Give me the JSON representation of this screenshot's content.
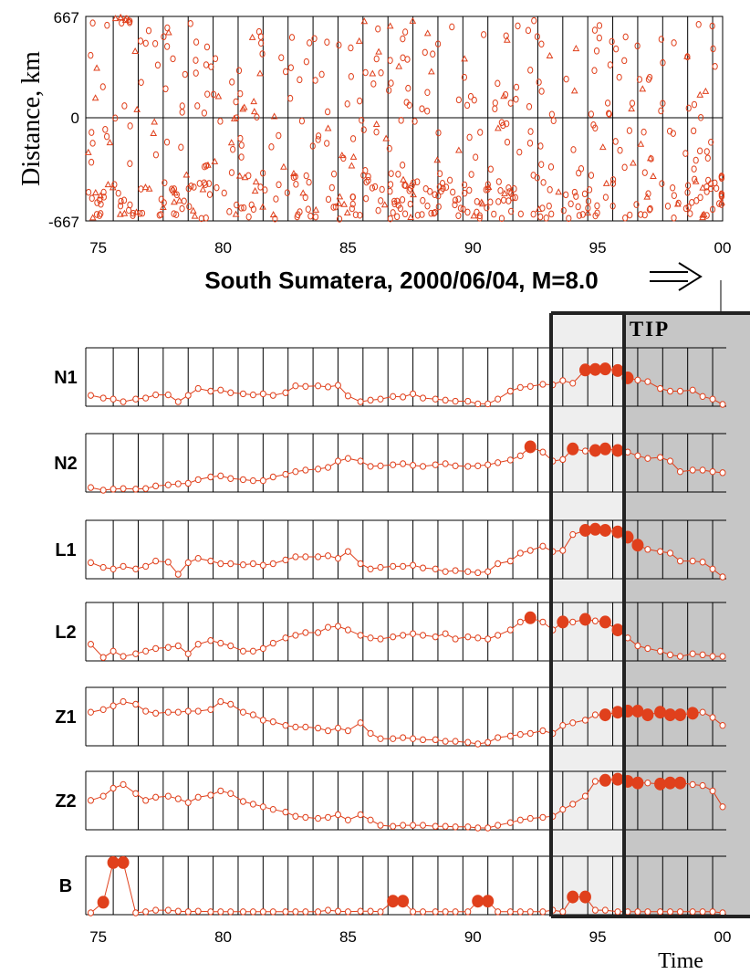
{
  "chart_data": [
    {
      "type": "scatter",
      "title": "",
      "ylabel": "Distance, km",
      "xlabel": "",
      "yticks": [
        "667",
        "0",
        "-667"
      ],
      "ylim": [
        -667,
        667
      ],
      "xlim": [
        1974.5,
        2000
      ],
      "xtick_labels": [
        "75",
        "80",
        "85",
        "90",
        "95",
        "00"
      ],
      "xtick_values": [
        1975,
        1980,
        1985,
        1990,
        1995,
        2000
      ],
      "grid": "vertical lines each year",
      "marker_color": "#E0401C",
      "marker": "open small circles and triangles (epicenters)",
      "points_note": "dense cloud of several hundred events spread over the whole time span, concentrated in the lower half (-350 to -667 km) and a strong cluster at year 2000 near -500 km"
    },
    {
      "type": "line",
      "caption": "South Sumatera, 2000/06/04, M=8.0",
      "xlabel": "Time",
      "xlim": [
        1974.5,
        2000
      ],
      "xtick_labels": [
        "75",
        "80",
        "85",
        "90",
        "95",
        "00"
      ],
      "xtick_values": [
        1975,
        1980,
        1985,
        1990,
        1995,
        2000
      ],
      "grid": "vertical lines each year",
      "line_color": "#E0401C",
      "alarm_marker": "filled red circles where the function exceeds its threshold",
      "tip_label": "TIP",
      "tip_onset": 1996,
      "light_window_start": 1993.4,
      "series": [
        {
          "name": "N1",
          "t": [
            1974.7,
            1975.2,
            1975.6,
            1976.0,
            1976.5,
            1976.9,
            1977.3,
            1977.8,
            1978.2,
            1978.6,
            1979.0,
            1979.5,
            1979.9,
            1980.3,
            1980.8,
            1981.2,
            1981.6,
            1982.0,
            1982.5,
            1982.9,
            1983.3,
            1983.8,
            1984.2,
            1984.6,
            1985.0,
            1985.5,
            1985.9,
            1986.3,
            1986.8,
            1987.2,
            1987.6,
            1988.0,
            1988.5,
            1988.9,
            1989.3,
            1989.8,
            1990.2,
            1990.6,
            1991.0,
            1991.5,
            1991.9,
            1992.3,
            1992.8,
            1993.2,
            1993.6,
            1994.0,
            1994.5,
            1994.9,
            1995.3,
            1995.8,
            1996.2,
            1996.6,
            1997.0,
            1997.5,
            1997.9,
            1998.3,
            1998.8,
            1999.2,
            1999.6,
            2000.0
          ],
          "v": [
            0.17,
            0.12,
            0.1,
            0.05,
            0.1,
            0.12,
            0.18,
            0.18,
            0.05,
            0.17,
            0.3,
            0.25,
            0.27,
            0.22,
            0.2,
            0.18,
            0.2,
            0.17,
            0.22,
            0.35,
            0.34,
            0.35,
            0.33,
            0.36,
            0.16,
            0.05,
            0.08,
            0.1,
            0.15,
            0.14,
            0.2,
            0.12,
            0.1,
            0.08,
            0.06,
            0.06,
            0.01,
            0.01,
            0.1,
            0.25,
            0.32,
            0.34,
            0.38,
            0.37,
            0.45,
            0.4,
            0.65,
            0.66,
            0.67,
            0.64,
            0.5,
            0.46,
            0.43,
            0.3,
            0.25,
            0.25,
            0.27,
            0.15,
            0.1,
            0.0
          ],
          "alarms": [
            1994.5,
            1994.9,
            1995.3,
            1995.8,
            1996.2
          ]
        },
        {
          "name": "N2",
          "t": [
            1974.7,
            1975.2,
            1975.6,
            1976.0,
            1976.5,
            1976.9,
            1977.3,
            1977.8,
            1978.2,
            1978.6,
            1979.0,
            1979.5,
            1979.9,
            1980.3,
            1980.8,
            1981.2,
            1981.6,
            1982.0,
            1982.5,
            1982.9,
            1983.3,
            1983.8,
            1984.2,
            1984.6,
            1985.0,
            1985.5,
            1985.9,
            1986.3,
            1986.8,
            1987.2,
            1987.6,
            1988.0,
            1988.5,
            1988.9,
            1989.3,
            1989.8,
            1990.2,
            1990.6,
            1991.0,
            1991.5,
            1991.9,
            1992.3,
            1992.8,
            1993.2,
            1993.6,
            1994.0,
            1994.5,
            1994.9,
            1995.3,
            1995.8,
            1996.2,
            1996.6,
            1997.0,
            1997.5,
            1997.9,
            1998.3,
            1998.8,
            1999.2,
            1999.6,
            2000.0
          ],
          "v": [
            0.05,
            0.0,
            0.02,
            0.03,
            0.02,
            0.03,
            0.08,
            0.1,
            0.12,
            0.13,
            0.2,
            0.25,
            0.27,
            0.22,
            0.2,
            0.18,
            0.18,
            0.25,
            0.3,
            0.35,
            0.38,
            0.4,
            0.43,
            0.55,
            0.6,
            0.55,
            0.45,
            0.46,
            0.48,
            0.5,
            0.47,
            0.45,
            0.48,
            0.5,
            0.46,
            0.45,
            0.46,
            0.48,
            0.52,
            0.57,
            0.65,
            0.82,
            0.72,
            0.55,
            0.58,
            0.78,
            0.74,
            0.75,
            0.78,
            0.75,
            0.72,
            0.65,
            0.6,
            0.62,
            0.55,
            0.35,
            0.38,
            0.38,
            0.35,
            0.33
          ],
          "alarms": [
            1992.3,
            1994.0,
            1994.9,
            1995.3,
            1995.8
          ]
        },
        {
          "name": "L1",
          "t": [
            1974.7,
            1975.2,
            1975.6,
            1976.0,
            1976.5,
            1976.9,
            1977.3,
            1977.8,
            1978.2,
            1978.6,
            1979.0,
            1979.5,
            1979.9,
            1980.3,
            1980.8,
            1981.2,
            1981.6,
            1982.0,
            1982.5,
            1982.9,
            1983.3,
            1983.8,
            1984.2,
            1984.6,
            1985.0,
            1985.5,
            1985.9,
            1986.3,
            1986.8,
            1987.2,
            1987.6,
            1988.0,
            1988.5,
            1988.9,
            1989.3,
            1989.8,
            1990.2,
            1990.6,
            1991.0,
            1991.5,
            1991.9,
            1992.3,
            1992.8,
            1993.2,
            1993.6,
            1994.0,
            1994.5,
            1994.9,
            1995.3,
            1995.8,
            1996.2,
            1996.6,
            1997.0,
            1997.5,
            1997.9,
            1998.3,
            1998.8,
            1999.2,
            1999.6,
            2000.0
          ],
          "v": [
            0.27,
            0.18,
            0.15,
            0.2,
            0.15,
            0.2,
            0.3,
            0.28,
            0.05,
            0.27,
            0.35,
            0.3,
            0.25,
            0.25,
            0.23,
            0.25,
            0.22,
            0.25,
            0.32,
            0.38,
            0.38,
            0.38,
            0.4,
            0.35,
            0.48,
            0.25,
            0.15,
            0.18,
            0.2,
            0.2,
            0.22,
            0.17,
            0.15,
            0.1,
            0.12,
            0.1,
            0.08,
            0.1,
            0.25,
            0.3,
            0.45,
            0.5,
            0.58,
            0.48,
            0.5,
            0.8,
            0.88,
            0.9,
            0.88,
            0.85,
            0.75,
            0.6,
            0.52,
            0.48,
            0.45,
            0.3,
            0.3,
            0.28,
            0.15,
            0.0
          ],
          "alarms": [
            1994.5,
            1994.9,
            1995.3,
            1995.8,
            1996.2,
            1996.6
          ]
        },
        {
          "name": "L2",
          "t": [
            1974.7,
            1975.2,
            1975.6,
            1976.0,
            1976.5,
            1976.9,
            1977.3,
            1977.8,
            1978.2,
            1978.6,
            1979.0,
            1979.5,
            1979.9,
            1980.3,
            1980.8,
            1981.2,
            1981.6,
            1982.0,
            1982.5,
            1982.9,
            1983.3,
            1983.8,
            1984.2,
            1984.6,
            1985.0,
            1985.5,
            1985.9,
            1986.3,
            1986.8,
            1987.2,
            1987.6,
            1988.0,
            1988.5,
            1988.9,
            1989.3,
            1989.8,
            1990.2,
            1990.6,
            1991.0,
            1991.5,
            1991.9,
            1992.3,
            1992.8,
            1993.2,
            1993.6,
            1994.0,
            1994.5,
            1994.9,
            1995.3,
            1995.8,
            1996.2,
            1996.6,
            1997.0,
            1997.5,
            1997.9,
            1998.3,
            1998.8,
            1999.2,
            1999.6,
            2000.0
          ],
          "v": [
            0.28,
            0.03,
            0.15,
            0.05,
            0.1,
            0.15,
            0.2,
            0.22,
            0.25,
            0.1,
            0.28,
            0.35,
            0.3,
            0.25,
            0.15,
            0.15,
            0.2,
            0.3,
            0.4,
            0.45,
            0.5,
            0.5,
            0.6,
            0.62,
            0.55,
            0.45,
            0.4,
            0.38,
            0.42,
            0.45,
            0.48,
            0.45,
            0.42,
            0.48,
            0.38,
            0.42,
            0.4,
            0.38,
            0.45,
            0.55,
            0.7,
            0.78,
            0.7,
            0.55,
            0.7,
            0.7,
            0.75,
            0.72,
            0.7,
            0.55,
            0.4,
            0.25,
            0.2,
            0.15,
            0.08,
            0.05,
            0.1,
            0.08,
            0.05,
            0.05
          ],
          "alarms": [
            1992.3,
            1993.6,
            1994.5,
            1995.3,
            1995.8
          ]
        },
        {
          "name": "Z1",
          "t": [
            1974.7,
            1975.2,
            1975.6,
            1976.0,
            1976.5,
            1976.9,
            1977.3,
            1977.8,
            1978.2,
            1978.6,
            1979.0,
            1979.5,
            1979.9,
            1980.3,
            1980.8,
            1981.2,
            1981.6,
            1982.0,
            1982.5,
            1982.9,
            1983.3,
            1983.8,
            1984.2,
            1984.6,
            1985.0,
            1985.5,
            1985.9,
            1986.3,
            1986.8,
            1987.2,
            1987.6,
            1988.0,
            1988.5,
            1988.9,
            1989.3,
            1989.8,
            1990.2,
            1990.6,
            1991.0,
            1991.5,
            1991.9,
            1992.3,
            1992.8,
            1993.2,
            1993.6,
            1994.0,
            1994.5,
            1994.9,
            1995.3,
            1995.8,
            1996.2,
            1996.6,
            1997.0,
            1997.5,
            1997.9,
            1998.3,
            1998.8,
            1999.2,
            1999.6,
            2000.0
          ],
          "v": [
            0.6,
            0.65,
            0.72,
            0.8,
            0.75,
            0.62,
            0.58,
            0.6,
            0.6,
            0.62,
            0.62,
            0.65,
            0.8,
            0.75,
            0.6,
            0.55,
            0.45,
            0.42,
            0.35,
            0.32,
            0.32,
            0.3,
            0.25,
            0.3,
            0.25,
            0.4,
            0.2,
            0.1,
            0.1,
            0.12,
            0.1,
            0.08,
            0.08,
            0.05,
            0.05,
            0.03,
            0.0,
            0.03,
            0.12,
            0.15,
            0.18,
            0.2,
            0.25,
            0.2,
            0.35,
            0.4,
            0.45,
            0.55,
            0.55,
            0.6,
            0.62,
            0.62,
            0.55,
            0.6,
            0.55,
            0.55,
            0.58,
            0.6,
            0.5,
            0.35
          ],
          "alarms": [
            1995.3,
            1995.8,
            1996.2,
            1996.6,
            1997.0,
            1997.5,
            1997.9,
            1998.3,
            1998.8
          ]
        },
        {
          "name": "Z2",
          "t": [
            1974.7,
            1975.2,
            1975.6,
            1976.0,
            1976.5,
            1976.9,
            1977.3,
            1977.8,
            1978.2,
            1978.6,
            1979.0,
            1979.5,
            1979.9,
            1980.3,
            1980.8,
            1981.2,
            1981.6,
            1982.0,
            1982.5,
            1982.9,
            1983.3,
            1983.8,
            1984.2,
            1984.6,
            1985.0,
            1985.5,
            1985.9,
            1986.3,
            1986.8,
            1987.2,
            1987.6,
            1988.0,
            1988.5,
            1988.9,
            1989.3,
            1989.8,
            1990.2,
            1990.6,
            1991.0,
            1991.5,
            1991.9,
            1992.3,
            1992.8,
            1993.2,
            1993.6,
            1994.0,
            1994.5,
            1994.9,
            1995.3,
            1995.8,
            1996.2,
            1996.6,
            1997.0,
            1997.5,
            1997.9,
            1998.3,
            1998.8,
            1999.2,
            1999.6,
            2000.0
          ],
          "v": [
            0.52,
            0.6,
            0.75,
            0.82,
            0.65,
            0.52,
            0.58,
            0.6,
            0.55,
            0.48,
            0.58,
            0.62,
            0.7,
            0.65,
            0.5,
            0.45,
            0.4,
            0.35,
            0.3,
            0.22,
            0.2,
            0.18,
            0.2,
            0.25,
            0.15,
            0.25,
            0.15,
            0.05,
            0.03,
            0.05,
            0.05,
            0.05,
            0.03,
            0.03,
            0.02,
            0.02,
            0.0,
            0.0,
            0.05,
            0.1,
            0.15,
            0.18,
            0.2,
            0.22,
            0.35,
            0.45,
            0.6,
            0.88,
            0.9,
            0.92,
            0.88,
            0.85,
            0.85,
            0.83,
            0.85,
            0.85,
            0.82,
            0.8,
            0.7,
            0.4
          ],
          "alarms": [
            1995.3,
            1995.8,
            1996.2,
            1996.6,
            1997.5,
            1997.9,
            1998.3
          ]
        },
        {
          "name": "B",
          "t": [
            1974.7,
            1975.2,
            1975.6,
            1976.0,
            1976.5,
            1976.9,
            1977.3,
            1977.8,
            1978.2,
            1978.6,
            1979.0,
            1979.5,
            1979.9,
            1980.3,
            1980.8,
            1981.2,
            1981.6,
            1982.0,
            1982.5,
            1982.9,
            1983.3,
            1983.8,
            1984.2,
            1984.6,
            1985.0,
            1985.5,
            1985.9,
            1986.3,
            1986.8,
            1987.2,
            1987.6,
            1988.0,
            1988.5,
            1988.9,
            1989.3,
            1989.8,
            1990.2,
            1990.6,
            1991.0,
            1991.5,
            1991.9,
            1992.3,
            1992.8,
            1993.2,
            1993.6,
            1994.0,
            1994.5,
            1994.9,
            1995.3,
            1995.8,
            1996.2,
            1996.6,
            1997.0,
            1997.5,
            1997.9,
            1998.3,
            1998.8,
            1999.2,
            1999.6,
            2000.0
          ],
          "v": [
            0.0,
            0.2,
            0.95,
            0.95,
            0.0,
            0.02,
            0.05,
            0.05,
            0.03,
            0.02,
            0.03,
            0.02,
            0.02,
            0.02,
            0.02,
            0.02,
            0.02,
            0.02,
            0.02,
            0.02,
            0.02,
            0.02,
            0.05,
            0.03,
            0.02,
            0.03,
            0.03,
            0.02,
            0.22,
            0.22,
            0.02,
            0.02,
            0.02,
            0.02,
            0.02,
            0.02,
            0.22,
            0.22,
            0.02,
            0.02,
            0.02,
            0.02,
            0.02,
            0.05,
            0.02,
            0.3,
            0.3,
            0.05,
            0.05,
            0.02,
            0.02,
            0.02,
            0.02,
            0.02,
            0.02,
            0.02,
            0.02,
            0.02,
            0.02,
            0.0
          ],
          "alarms": [
            1975.2,
            1975.6,
            1976.0,
            1986.8,
            1987.2,
            1990.2,
            1990.6,
            1994.0,
            1994.5
          ]
        }
      ]
    }
  ]
}
